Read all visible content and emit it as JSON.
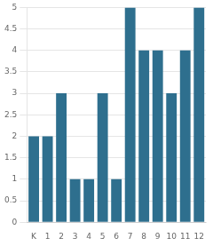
{
  "chart_data": {
    "type": "bar",
    "categories": [
      "K",
      "1",
      "2",
      "3",
      "4",
      "5",
      "6",
      "7",
      "8",
      "9",
      "10",
      "11",
      "12"
    ],
    "values": [
      2,
      2,
      3,
      1,
      1,
      3,
      1,
      5,
      4,
      4,
      3,
      4,
      5
    ],
    "color": "#2e6f8e",
    "ylim": [
      0,
      5
    ],
    "yticks": [
      0,
      0.5,
      1,
      1.5,
      2,
      2.5,
      3,
      3.5,
      4,
      4.5,
      5
    ],
    "grid": true
  }
}
